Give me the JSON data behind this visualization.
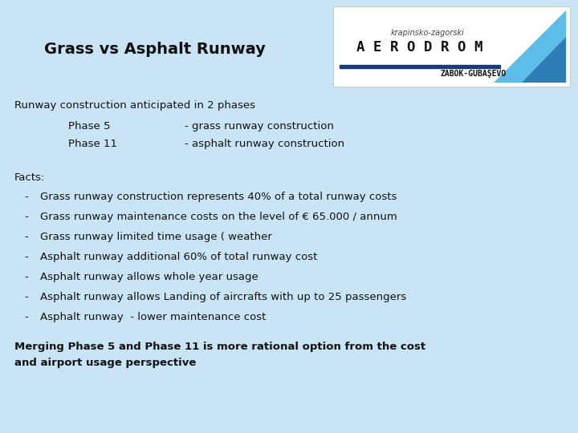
{
  "bg_color": "#c8e4f5",
  "title": "Grass vs Asphalt Runway",
  "title_fontsize": 14,
  "body_fontsize": 9.5,
  "body_color": "#111111",
  "line1": "Runway construction anticipated in 2 phases",
  "line2_label": "Phase 5",
  "line2_val": "- grass runway construction",
  "line3_label": "Phase 11",
  "line3_val": "- asphalt runway construction",
  "facts_label": "Facts:",
  "bullet_lines": [
    "Grass runway construction represents 40% of a total runway costs",
    "Grass runway maintenance costs on the level of € 65.000 / annum",
    "Grass runway limited time usage ( weather",
    "Asphalt runway additional 60% of total runway cost",
    "Asphalt runway allows whole year usage",
    "Asphalt runway allows Landing of aircrafts with up to 25 passengers",
    "Asphalt runway  - lower maintenance cost"
  ],
  "conclusion_line1": "Merging Phase 5 and Phase 11 is more rational option from the cost",
  "conclusion_line2": "and airport usage perspective",
  "logo_text_small": "krapinsko-zagorski",
  "logo_text_large": "A E R O D R O M",
  "logo_text_bottom": "ZABOK-GUBAŞEVO",
  "tail_color_light": "#5bbde8",
  "tail_color_dark": "#2e7db5",
  "logo_line_color": "#1a3a7a"
}
